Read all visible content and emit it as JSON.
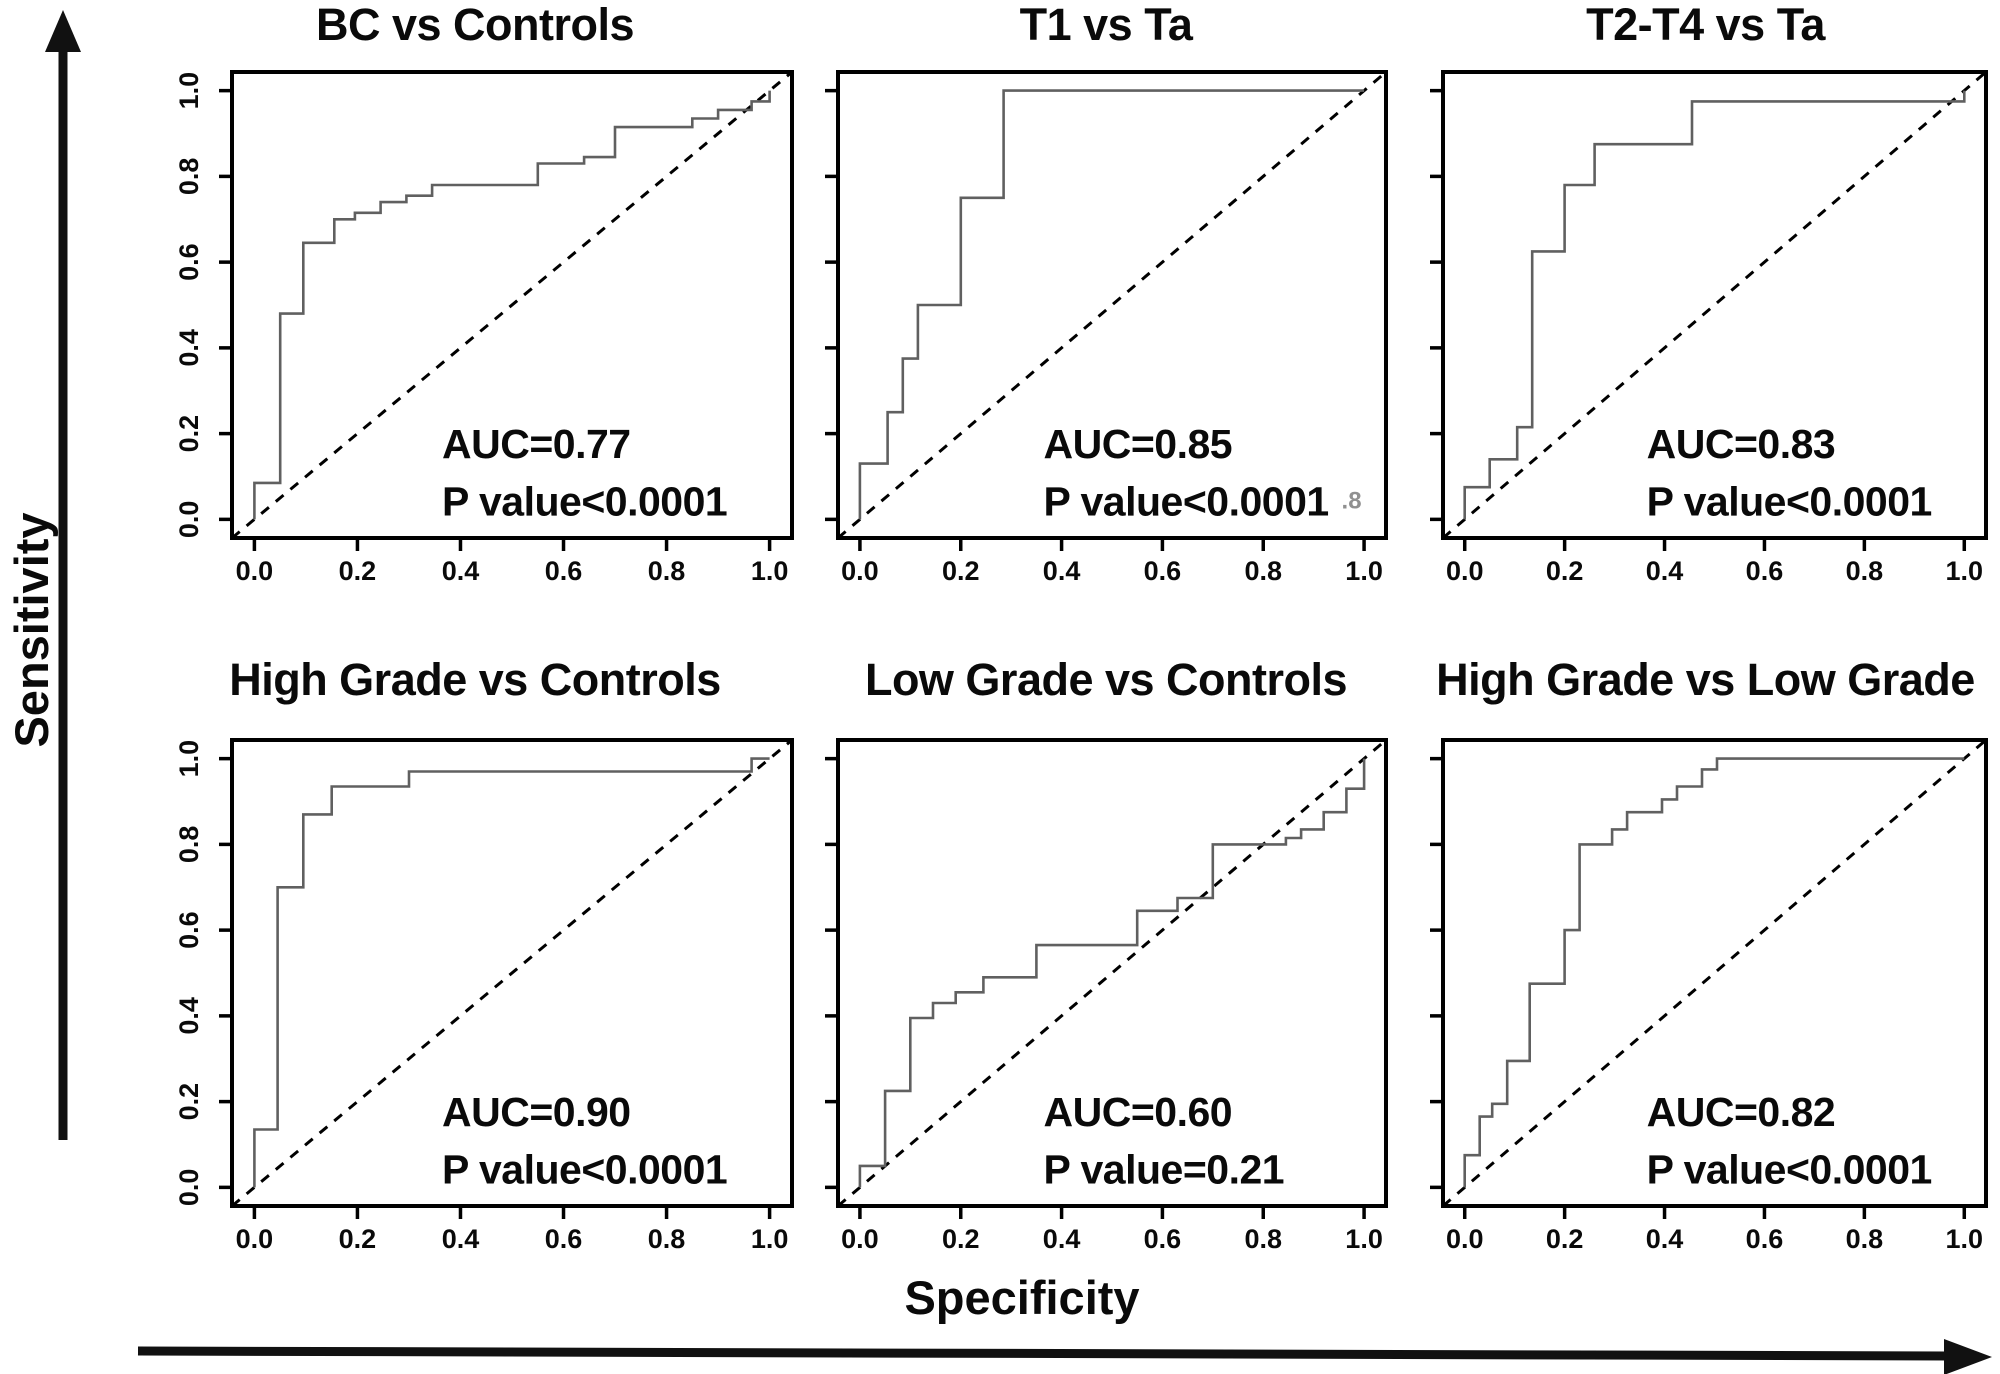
{
  "figure": {
    "sensitivity_label": "Sensitivity",
    "specificity_label": "Specificity",
    "background_color": "#ffffff",
    "curve_color": "#606060",
    "axis_color": "#000000",
    "text_color": "#0a0a0a",
    "artifact_color": "#909090"
  },
  "chart_data": [
    {
      "type": "line",
      "title": "BC vs Controls",
      "auc_label": "AUC=0.77",
      "p_label": "P value<0.0001",
      "xlabel": "Specificity",
      "ylabel": "Sensitivity",
      "xlim": [
        0,
        1
      ],
      "ylim": [
        0,
        1
      ],
      "x_tick_labels": [
        "0.0",
        "0.2",
        "0.4",
        "0.6",
        "0.8",
        "1.0"
      ],
      "y_tick_labels": [
        "0.0",
        "0.2",
        "0.4",
        "0.6",
        "0.8",
        "1.0"
      ],
      "show_y_tick_labels": true,
      "diagonal_reference": true,
      "grid": false,
      "roc_points": [
        [
          0,
          0
        ],
        [
          0,
          0.085
        ],
        [
          0.05,
          0.085
        ],
        [
          0.05,
          0.48
        ],
        [
          0.095,
          0.48
        ],
        [
          0.095,
          0.645
        ],
        [
          0.155,
          0.645
        ],
        [
          0.155,
          0.7
        ],
        [
          0.195,
          0.7
        ],
        [
          0.195,
          0.715
        ],
        [
          0.245,
          0.715
        ],
        [
          0.245,
          0.74
        ],
        [
          0.295,
          0.74
        ],
        [
          0.295,
          0.755
        ],
        [
          0.345,
          0.755
        ],
        [
          0.345,
          0.78
        ],
        [
          0.55,
          0.78
        ],
        [
          0.55,
          0.83
        ],
        [
          0.64,
          0.83
        ],
        [
          0.64,
          0.845
        ],
        [
          0.7,
          0.845
        ],
        [
          0.7,
          0.915
        ],
        [
          0.85,
          0.915
        ],
        [
          0.85,
          0.935
        ],
        [
          0.9,
          0.935
        ],
        [
          0.9,
          0.955
        ],
        [
          0.965,
          0.955
        ],
        [
          0.965,
          0.975
        ],
        [
          1,
          0.975
        ],
        [
          1,
          1
        ]
      ]
    },
    {
      "type": "line",
      "title": "T1 vs Ta",
      "auc_label": "AUC=0.85",
      "p_label": "P value<0.0001",
      "artifact_text": ".8",
      "xlabel": "Specificity",
      "ylabel": "Sensitivity",
      "xlim": [
        0,
        1
      ],
      "ylim": [
        0,
        1
      ],
      "x_tick_labels": [
        "0.0",
        "0.2",
        "0.4",
        "0.6",
        "0.8",
        "1.0"
      ],
      "y_tick_labels": [
        "0.0",
        "0.2",
        "0.4",
        "0.6",
        "0.8",
        "1.0"
      ],
      "show_y_tick_labels": false,
      "diagonal_reference": true,
      "grid": false,
      "roc_points": [
        [
          0,
          0
        ],
        [
          0,
          0.13
        ],
        [
          0.055,
          0.13
        ],
        [
          0.055,
          0.25
        ],
        [
          0.085,
          0.25
        ],
        [
          0.085,
          0.375
        ],
        [
          0.115,
          0.375
        ],
        [
          0.115,
          0.5
        ],
        [
          0.2,
          0.5
        ],
        [
          0.2,
          0.75
        ],
        [
          0.285,
          0.75
        ],
        [
          0.285,
          1.0
        ],
        [
          1,
          1
        ]
      ]
    },
    {
      "type": "line",
      "title": "T2-T4 vs Ta",
      "auc_label": "AUC=0.83",
      "p_label": "P value<0.0001",
      "xlabel": "Specificity",
      "ylabel": "Sensitivity",
      "xlim": [
        0,
        1
      ],
      "ylim": [
        0,
        1
      ],
      "x_tick_labels": [
        "0.0",
        "0.2",
        "0.4",
        "0.6",
        "0.8",
        "1.0"
      ],
      "y_tick_labels": [
        "0.0",
        "0.2",
        "0.4",
        "0.6",
        "0.8",
        "1.0"
      ],
      "show_y_tick_labels": false,
      "diagonal_reference": true,
      "grid": false,
      "roc_points": [
        [
          0,
          0
        ],
        [
          0,
          0.075
        ],
        [
          0.05,
          0.075
        ],
        [
          0.05,
          0.14
        ],
        [
          0.105,
          0.14
        ],
        [
          0.105,
          0.215
        ],
        [
          0.135,
          0.215
        ],
        [
          0.135,
          0.625
        ],
        [
          0.2,
          0.625
        ],
        [
          0.2,
          0.78
        ],
        [
          0.26,
          0.78
        ],
        [
          0.26,
          0.875
        ],
        [
          0.455,
          0.875
        ],
        [
          0.455,
          0.975
        ],
        [
          1,
          0.975
        ],
        [
          1,
          1
        ]
      ]
    },
    {
      "type": "line",
      "title": "High Grade vs Controls",
      "auc_label": "AUC=0.90",
      "p_label": "P value<0.0001",
      "xlabel": "Specificity",
      "ylabel": "Sensitivity",
      "xlim": [
        0,
        1
      ],
      "ylim": [
        0,
        1
      ],
      "x_tick_labels": [
        "0.0",
        "0.2",
        "0.4",
        "0.6",
        "0.8",
        "1.0"
      ],
      "y_tick_labels": [
        "0.0",
        "0.2",
        "0.4",
        "0.6",
        "0.8",
        "1.0"
      ],
      "show_y_tick_labels": true,
      "diagonal_reference": true,
      "grid": false,
      "roc_points": [
        [
          0,
          0
        ],
        [
          0,
          0.135
        ],
        [
          0.045,
          0.135
        ],
        [
          0.045,
          0.7
        ],
        [
          0.095,
          0.7
        ],
        [
          0.095,
          0.87
        ],
        [
          0.15,
          0.87
        ],
        [
          0.15,
          0.935
        ],
        [
          0.3,
          0.935
        ],
        [
          0.3,
          0.97
        ],
        [
          0.965,
          0.97
        ],
        [
          0.965,
          1.0
        ],
        [
          1,
          1
        ]
      ]
    },
    {
      "type": "line",
      "title": "Low Grade vs Controls",
      "auc_label": "AUC=0.60",
      "p_label": "P value=0.21",
      "xlabel": "Specificity",
      "ylabel": "Sensitivity",
      "xlim": [
        0,
        1
      ],
      "ylim": [
        0,
        1
      ],
      "x_tick_labels": [
        "0.0",
        "0.2",
        "0.4",
        "0.6",
        "0.8",
        "1.0"
      ],
      "y_tick_labels": [
        "0.0",
        "0.2",
        "0.4",
        "0.6",
        "0.8",
        "1.0"
      ],
      "show_y_tick_labels": false,
      "diagonal_reference": true,
      "grid": false,
      "roc_points": [
        [
          0,
          0
        ],
        [
          0,
          0.05
        ],
        [
          0.05,
          0.05
        ],
        [
          0.05,
          0.225
        ],
        [
          0.1,
          0.225
        ],
        [
          0.1,
          0.395
        ],
        [
          0.145,
          0.395
        ],
        [
          0.145,
          0.43
        ],
        [
          0.19,
          0.43
        ],
        [
          0.19,
          0.455
        ],
        [
          0.245,
          0.455
        ],
        [
          0.245,
          0.49
        ],
        [
          0.35,
          0.49
        ],
        [
          0.35,
          0.565
        ],
        [
          0.55,
          0.565
        ],
        [
          0.55,
          0.645
        ],
        [
          0.63,
          0.645
        ],
        [
          0.63,
          0.675
        ],
        [
          0.7,
          0.675
        ],
        [
          0.7,
          0.8
        ],
        [
          0.845,
          0.8
        ],
        [
          0.845,
          0.815
        ],
        [
          0.875,
          0.815
        ],
        [
          0.875,
          0.835
        ],
        [
          0.92,
          0.835
        ],
        [
          0.92,
          0.875
        ],
        [
          0.965,
          0.875
        ],
        [
          0.965,
          0.93
        ],
        [
          1,
          0.93
        ],
        [
          1,
          1
        ]
      ]
    },
    {
      "type": "line",
      "title": "High Grade vs Low Grade",
      "auc_label": "AUC=0.82",
      "p_label": "P value<0.0001",
      "xlabel": "Specificity",
      "ylabel": "Sensitivity",
      "xlim": [
        0,
        1
      ],
      "ylim": [
        0,
        1
      ],
      "x_tick_labels": [
        "0.0",
        "0.2",
        "0.4",
        "0.6",
        "0.8",
        "1.0"
      ],
      "y_tick_labels": [
        "0.0",
        "0.2",
        "0.4",
        "0.6",
        "0.8",
        "1.0"
      ],
      "show_y_tick_labels": false,
      "diagonal_reference": true,
      "grid": false,
      "roc_points": [
        [
          0,
          0
        ],
        [
          0,
          0.075
        ],
        [
          0.03,
          0.075
        ],
        [
          0.03,
          0.165
        ],
        [
          0.055,
          0.165
        ],
        [
          0.055,
          0.195
        ],
        [
          0.085,
          0.195
        ],
        [
          0.085,
          0.295
        ],
        [
          0.13,
          0.295
        ],
        [
          0.13,
          0.475
        ],
        [
          0.2,
          0.475
        ],
        [
          0.2,
          0.6
        ],
        [
          0.23,
          0.6
        ],
        [
          0.23,
          0.8
        ],
        [
          0.295,
          0.8
        ],
        [
          0.295,
          0.835
        ],
        [
          0.325,
          0.835
        ],
        [
          0.325,
          0.875
        ],
        [
          0.395,
          0.875
        ],
        [
          0.395,
          0.905
        ],
        [
          0.425,
          0.905
        ],
        [
          0.425,
          0.935
        ],
        [
          0.475,
          0.935
        ],
        [
          0.475,
          0.975
        ],
        [
          0.505,
          0.975
        ],
        [
          0.505,
          1.0
        ],
        [
          1,
          1
        ]
      ]
    }
  ]
}
